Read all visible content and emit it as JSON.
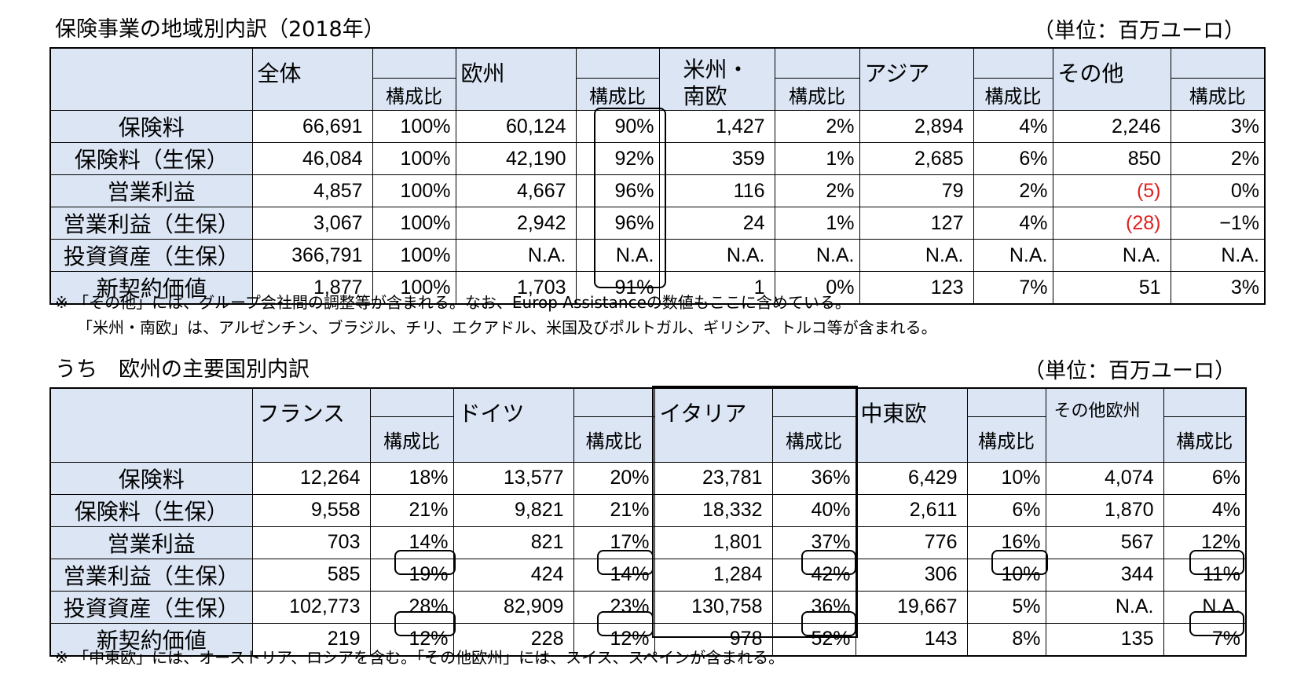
{
  "table1": {
    "caption": "保険事業の地域別内訳（2018年）",
    "unit": "（単位：百万ユーロ）",
    "regions": [
      "全体",
      "欧州",
      "米州・\n南欧",
      "アジア",
      "その他"
    ],
    "share_label": "構成比",
    "rows": [
      {
        "label": "保険料",
        "cells": [
          "66,691",
          "100%",
          "60,124",
          "90%",
          "1,427",
          "2%",
          "2,894",
          "4%",
          "2,246",
          "3%"
        ]
      },
      {
        "label": "保険料（生保）",
        "cells": [
          "46,084",
          "100%",
          "42,190",
          "92%",
          "359",
          "1%",
          "2,685",
          "6%",
          "850",
          "2%"
        ]
      },
      {
        "label": "営業利益",
        "cells": [
          "4,857",
          "100%",
          "4,667",
          "96%",
          "116",
          "2%",
          "79",
          "2%",
          "(5)",
          "0%"
        ]
      },
      {
        "label": "営業利益（生保）",
        "cells": [
          "3,067",
          "100%",
          "2,942",
          "96%",
          "24",
          "1%",
          "127",
          "4%",
          "(28)",
          "−1%"
        ]
      },
      {
        "label": "投資資産（生保）",
        "cells": [
          "366,791",
          "100%",
          "N.A.",
          "N.A.",
          "N.A.",
          "N.A.",
          "N.A.",
          "N.A.",
          "N.A.",
          "N.A."
        ]
      },
      {
        "label": "新契約価値",
        "cells": [
          "1,877",
          "100%",
          "1,703",
          "91%",
          "1",
          "0%",
          "123",
          "7%",
          "51",
          "3%"
        ]
      }
    ],
    "notes": [
      "※ 「その他」には、グループ会社間の調整等が含まれる。なお、Europ Assistanceの数値もここに含めている。",
      "「米州・南欧」は、アルゼンチン、ブラジル、チリ、エクアドル、米国及びポルトガル、ギリシア、トルコ等が含まれる。"
    ]
  },
  "table2": {
    "caption": "うち　欧州の主要国別内訳",
    "unit": "（単位：百万ユーロ）",
    "regions": [
      "フランス",
      "ドイツ",
      "イタリア",
      "中東欧",
      "その他欧州"
    ],
    "share_label": "構成比",
    "rows": [
      {
        "label": "保険料",
        "cells": [
          "12,264",
          "18%",
          "13,577",
          "20%",
          "23,781",
          "36%",
          "6,429",
          "10%",
          "4,074",
          "6%"
        ]
      },
      {
        "label": "保険料（生保）",
        "cells": [
          "9,558",
          "21%",
          "9,821",
          "21%",
          "18,332",
          "40%",
          "2,611",
          "6%",
          "1,870",
          "4%"
        ]
      },
      {
        "label": "営業利益",
        "cells": [
          "703",
          "14%",
          "821",
          "17%",
          "1,801",
          "37%",
          "776",
          "16%",
          "567",
          "12%"
        ]
      },
      {
        "label": "営業利益（生保）",
        "cells": [
          "585",
          "19%",
          "424",
          "14%",
          "1,284",
          "42%",
          "306",
          "10%",
          "344",
          "11%"
        ]
      },
      {
        "label": "投資資産（生保）",
        "cells": [
          "102,773",
          "28%",
          "82,909",
          "23%",
          "130,758",
          "36%",
          "19,667",
          "5%",
          "N.A.",
          "N.A."
        ]
      },
      {
        "label": "新契約価値",
        "cells": [
          "219",
          "12%",
          "228",
          "12%",
          "978",
          "52%",
          "143",
          "8%",
          "135",
          "7%"
        ]
      }
    ],
    "notes": [
      "※ 「中東欧」には、オーストリア、ロシアを含む。「その他欧州」には、スイス、スペインが含まれる。"
    ]
  }
}
